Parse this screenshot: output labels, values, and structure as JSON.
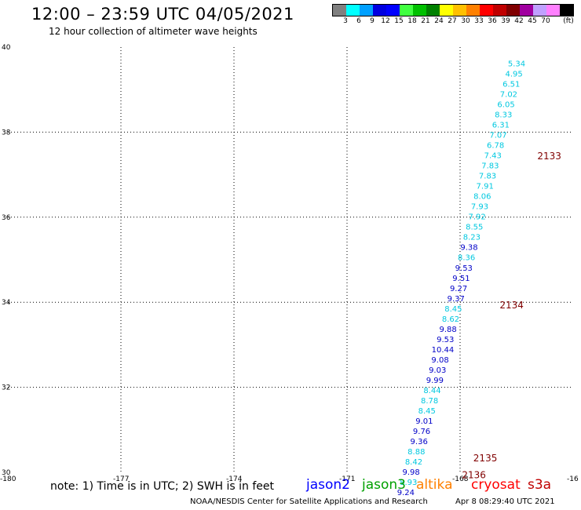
{
  "header": {
    "title": "12:00 – 23:59 UTC 04/05/2021",
    "subtitle": "12 hour collection of altimeter wave heights"
  },
  "legend": {
    "colors": [
      "#808080",
      "#00ffff",
      "#00a0ff",
      "#0000e0",
      "#0000ff",
      "#40ff40",
      "#00c000",
      "#008000",
      "#ffff00",
      "#ffc000",
      "#ff8000",
      "#ff0000",
      "#c00000",
      "#800000",
      "#a000a0",
      "#c0a0ff",
      "#ff80ff",
      "#000000"
    ],
    "labels": [
      "3",
      "6",
      "9",
      "12",
      "15",
      "18",
      "21",
      "24",
      "27",
      "30",
      "33",
      "36",
      "39",
      "42",
      "45",
      "70",
      "(ft)"
    ]
  },
  "map": {
    "lat_ticks": [
      "40",
      "38",
      "36",
      "34",
      "32",
      "30"
    ],
    "lon_ticks": [
      "-180",
      "-177",
      "-174",
      "-171",
      "-168",
      "-16"
    ]
  },
  "chart_data": {
    "type": "scatter",
    "xlim": [
      -180,
      -165
    ],
    "ylim": [
      30,
      40
    ],
    "grid": true,
    "units": "ft",
    "times": [
      {
        "label": "2133",
        "lon": -165.95,
        "lat": 37.45
      },
      {
        "label": "2134",
        "lon": -166.95,
        "lat": 33.95
      },
      {
        "label": "2135",
        "lon": -167.65,
        "lat": 30.35
      },
      {
        "label": "2136",
        "lon": -167.95,
        "lat": 29.95
      }
    ],
    "points": [
      {
        "lat": 39.62,
        "lon": -166.5,
        "swh": "5.34",
        "sat": "s3a"
      },
      {
        "lat": 39.38,
        "lon": -166.57,
        "swh": "4.95",
        "sat": "s3a"
      },
      {
        "lat": 39.14,
        "lon": -166.64,
        "swh": "6.51",
        "sat": "s3a"
      },
      {
        "lat": 38.9,
        "lon": -166.71,
        "swh": "7.02",
        "sat": "s3a"
      },
      {
        "lat": 38.66,
        "lon": -166.78,
        "swh": "6.05",
        "sat": "s3a"
      },
      {
        "lat": 38.42,
        "lon": -166.85,
        "swh": "8.33",
        "sat": "s3a"
      },
      {
        "lat": 38.18,
        "lon": -166.92,
        "swh": "6.31",
        "sat": "s3a"
      },
      {
        "lat": 37.94,
        "lon": -166.99,
        "swh": "7.07",
        "sat": "s3a"
      },
      {
        "lat": 37.7,
        "lon": -167.06,
        "swh": "6.78",
        "sat": "s3a"
      },
      {
        "lat": 37.46,
        "lon": -167.13,
        "swh": "7.43",
        "sat": "s3a"
      },
      {
        "lat": 37.22,
        "lon": -167.2,
        "swh": "7.83",
        "sat": "s3a"
      },
      {
        "lat": 36.98,
        "lon": -167.27,
        "swh": "7.83",
        "sat": "s3a"
      },
      {
        "lat": 36.74,
        "lon": -167.34,
        "swh": "7.91",
        "sat": "s3a"
      },
      {
        "lat": 36.5,
        "lon": -167.41,
        "swh": "8.06",
        "sat": "s3a"
      },
      {
        "lat": 36.26,
        "lon": -167.48,
        "swh": "7.93",
        "sat": "s3a"
      },
      {
        "lat": 36.02,
        "lon": -167.55,
        "swh": "7.92",
        "sat": "s3a"
      },
      {
        "lat": 35.78,
        "lon": -167.62,
        "swh": "8.55",
        "sat": "s3a"
      },
      {
        "lat": 35.54,
        "lon": -167.69,
        "swh": "8.23",
        "sat": "s3a"
      },
      {
        "lat": 35.3,
        "lon": -167.76,
        "swh": "9.38",
        "sat": "s3a"
      },
      {
        "lat": 35.06,
        "lon": -167.83,
        "swh": "8.36",
        "sat": "s3a"
      },
      {
        "lat": 34.82,
        "lon": -167.9,
        "swh": "9.53",
        "sat": "s3a"
      },
      {
        "lat": 34.58,
        "lon": -167.97,
        "swh": "9.51",
        "sat": "s3a"
      },
      {
        "lat": 34.34,
        "lon": -168.04,
        "swh": "9.27",
        "sat": "s3a"
      },
      {
        "lat": 34.1,
        "lon": -168.11,
        "swh": "9.37",
        "sat": "s3a"
      },
      {
        "lat": 33.86,
        "lon": -168.18,
        "swh": "8.45",
        "sat": "s3a"
      },
      {
        "lat": 33.62,
        "lon": -168.25,
        "swh": "8.62",
        "sat": "s3a"
      },
      {
        "lat": 33.38,
        "lon": -168.32,
        "swh": "9.88",
        "sat": "s3a"
      },
      {
        "lat": 33.14,
        "lon": -168.39,
        "swh": "9.53",
        "sat": "s3a"
      },
      {
        "lat": 32.9,
        "lon": -168.46,
        "swh": "10.44",
        "sat": "s3a"
      },
      {
        "lat": 32.66,
        "lon": -168.53,
        "swh": "9.08",
        "sat": "s3a"
      },
      {
        "lat": 32.42,
        "lon": -168.6,
        "swh": "9.03",
        "sat": "s3a"
      },
      {
        "lat": 32.18,
        "lon": -168.67,
        "swh": "9.99",
        "sat": "s3a"
      },
      {
        "lat": 31.94,
        "lon": -168.74,
        "swh": "8.44",
        "sat": "s3a"
      },
      {
        "lat": 31.7,
        "lon": -168.81,
        "swh": "8.78",
        "sat": "s3a"
      },
      {
        "lat": 31.46,
        "lon": -168.88,
        "swh": "8.45",
        "sat": "s3a"
      },
      {
        "lat": 31.22,
        "lon": -168.95,
        "swh": "9.01",
        "sat": "s3a"
      },
      {
        "lat": 30.98,
        "lon": -169.02,
        "swh": "9.76",
        "sat": "s3a"
      },
      {
        "lat": 30.74,
        "lon": -169.09,
        "swh": "9.36",
        "sat": "s3a"
      },
      {
        "lat": 30.5,
        "lon": -169.16,
        "swh": "8.88",
        "sat": "s3a"
      },
      {
        "lat": 30.26,
        "lon": -169.23,
        "swh": "8.42",
        "sat": "s3a"
      },
      {
        "lat": 30.02,
        "lon": -169.3,
        "swh": "9.98",
        "sat": "s3a"
      },
      {
        "lat": 29.78,
        "lon": -169.37,
        "swh": "8.93",
        "sat": "s3a"
      },
      {
        "lat": 29.54,
        "lon": -169.44,
        "swh": "9.24",
        "sat": "s3a"
      }
    ]
  },
  "footer": {
    "note": "note:  1) Time is in UTC;  2) SWH is in feet",
    "satellites": [
      {
        "name": "jason2",
        "color": "#0000ff"
      },
      {
        "name": "jason3",
        "color": "#00a000"
      },
      {
        "name": "altika",
        "color": "#ff8000"
      },
      {
        "name": "cryosat",
        "color": "#ff0000"
      },
      {
        "name": "s3a",
        "color": "#c00000"
      }
    ],
    "credit": "NOAA/NESDIS Center for Satellite Applications and Research",
    "timestamp": "Apr  8 08:29:40 UTC 2021"
  }
}
